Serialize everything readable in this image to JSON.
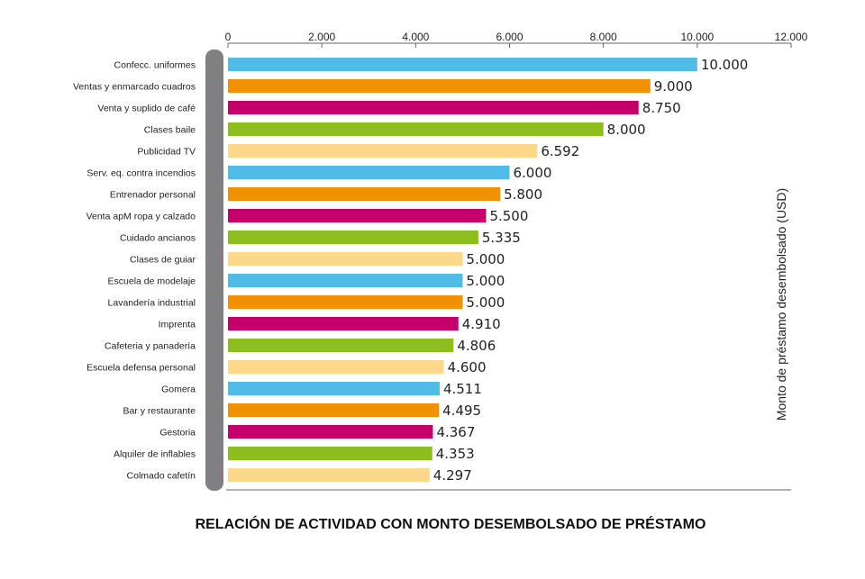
{
  "chart_data": {
    "type": "bar",
    "orientation": "horizontal",
    "title": "RELACIÓN DE ACTIVIDAD CON MONTO DESEMBOLSADO DE PRÉSTAMO",
    "xlabel": "Monto de préstamo desembolsado (USD)",
    "ylabel": "",
    "xlim": [
      0,
      12000
    ],
    "xticks": [
      "0",
      "2.000",
      "4.000",
      "6.000",
      "8.000",
      "10.000",
      "12.000"
    ],
    "categories": [
      "Confecc. uniformes",
      "Ventas y enmarcado cuadros",
      "Venta y suplido de café",
      "Clases baile",
      "Publicidad TV",
      "Serv. eq. contra incendios",
      "Entrenador personal",
      "Venta apM ropa y calzado",
      "Cuidado ancianos",
      "Clases de guiar",
      "Escuela de modelaje",
      "Lavandería industrial",
      "Imprenta",
      "Cafeteria y panadería",
      "Escuela defensa personal",
      "Gomera",
      "Bar y restaurante",
      "Gestoria",
      "Alquiler de inflables",
      "Colmado cafetín"
    ],
    "values": [
      10000,
      9000,
      8750,
      8000,
      6592,
      6000,
      5800,
      5500,
      5335,
      5000,
      5000,
      5000,
      4910,
      4806,
      4600,
      4511,
      4495,
      4367,
      4353,
      4297
    ],
    "value_labels": [
      "10.000",
      "9.000",
      "8.750",
      "8.000",
      "6.592",
      "6.000",
      "5.800",
      "5.500",
      "5.335",
      "5.000",
      "5.000",
      "5.000",
      "4.910",
      "4.806",
      "4.600",
      "4.511",
      "4.495",
      "4.367",
      "4.353",
      "4.297"
    ],
    "bar_colors": [
      "#4fbce8",
      "#f09200",
      "#c6006a",
      "#8cbe1e",
      "#fdd88a"
    ],
    "grid": false,
    "legend": "none"
  }
}
